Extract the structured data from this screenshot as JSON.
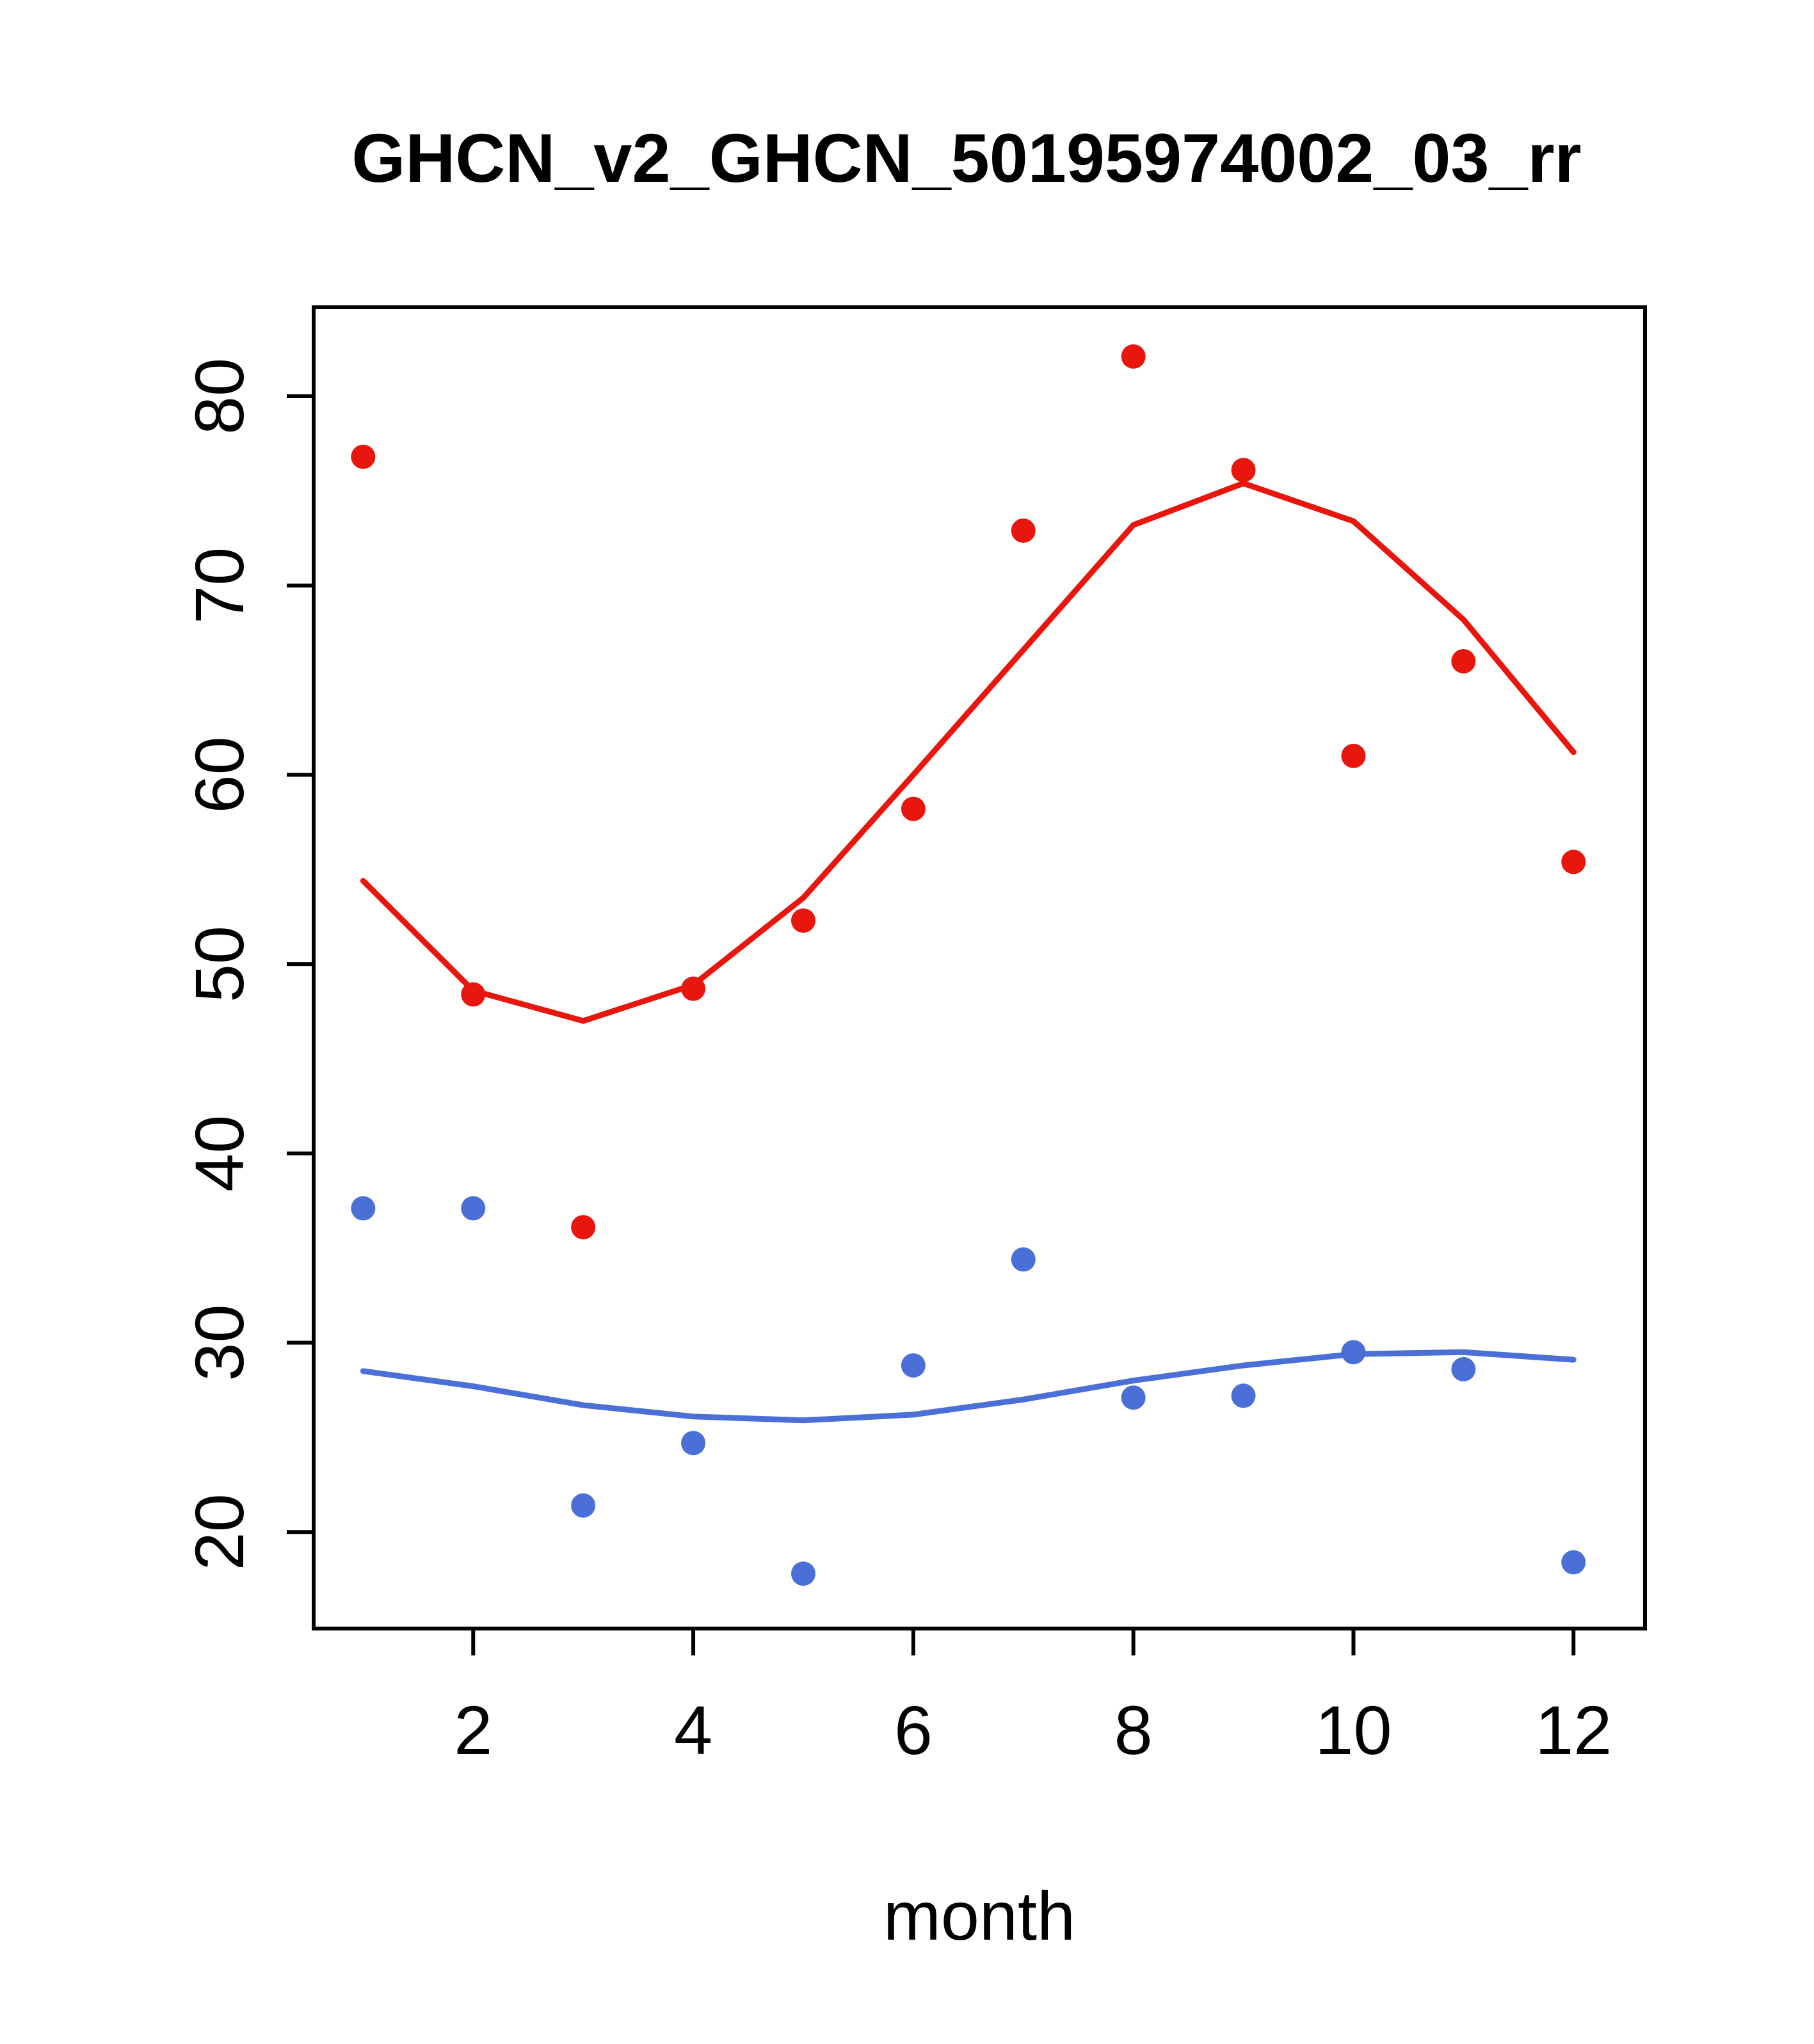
{
  "chart_data": {
    "type": "scatter",
    "title": "GHCN_v2_GHCN_50195974002_03_rr",
    "xlabel": "month",
    "ylabel": "",
    "grid": false,
    "legend": "none",
    "x": [
      1,
      2,
      3,
      4,
      5,
      6,
      7,
      8,
      9,
      10,
      11,
      12
    ],
    "x_ticks": [
      2,
      4,
      6,
      8,
      10,
      12
    ],
    "y_ticks": [
      20,
      30,
      40,
      50,
      60,
      70,
      80
    ],
    "xlim": [
      0.55,
      12.65
    ],
    "ylim": [
      14.9,
      84.7
    ],
    "colors": {
      "red": "#e8160c",
      "blue": "#4a70d8"
    },
    "series": [
      {
        "name": "red-scatter",
        "type": "points",
        "color": "#e8160c",
        "values": [
          76.8,
          48.4,
          36.1,
          48.7,
          52.3,
          58.2,
          72.9,
          82.1,
          76.1,
          61.0,
          66.0,
          55.4
        ]
      },
      {
        "name": "red-smooth",
        "type": "line",
        "color": "#e8160c",
        "values": [
          54.4,
          48.6,
          47.0,
          48.9,
          53.5,
          60.0,
          66.6,
          73.2,
          75.4,
          73.4,
          68.2,
          61.2
        ]
      },
      {
        "name": "blue-scatter",
        "type": "points",
        "color": "#4a70d8",
        "values": [
          37.1,
          37.1,
          21.4,
          24.7,
          17.8,
          28.8,
          34.4,
          27.1,
          27.2,
          29.5,
          28.6,
          18.4
        ]
      },
      {
        "name": "blue-smooth",
        "type": "line",
        "color": "#4a70d8",
        "values": [
          28.5,
          27.7,
          26.7,
          26.1,
          25.9,
          26.2,
          27.0,
          28.0,
          28.8,
          29.4,
          29.5,
          29.1
        ]
      }
    ]
  }
}
